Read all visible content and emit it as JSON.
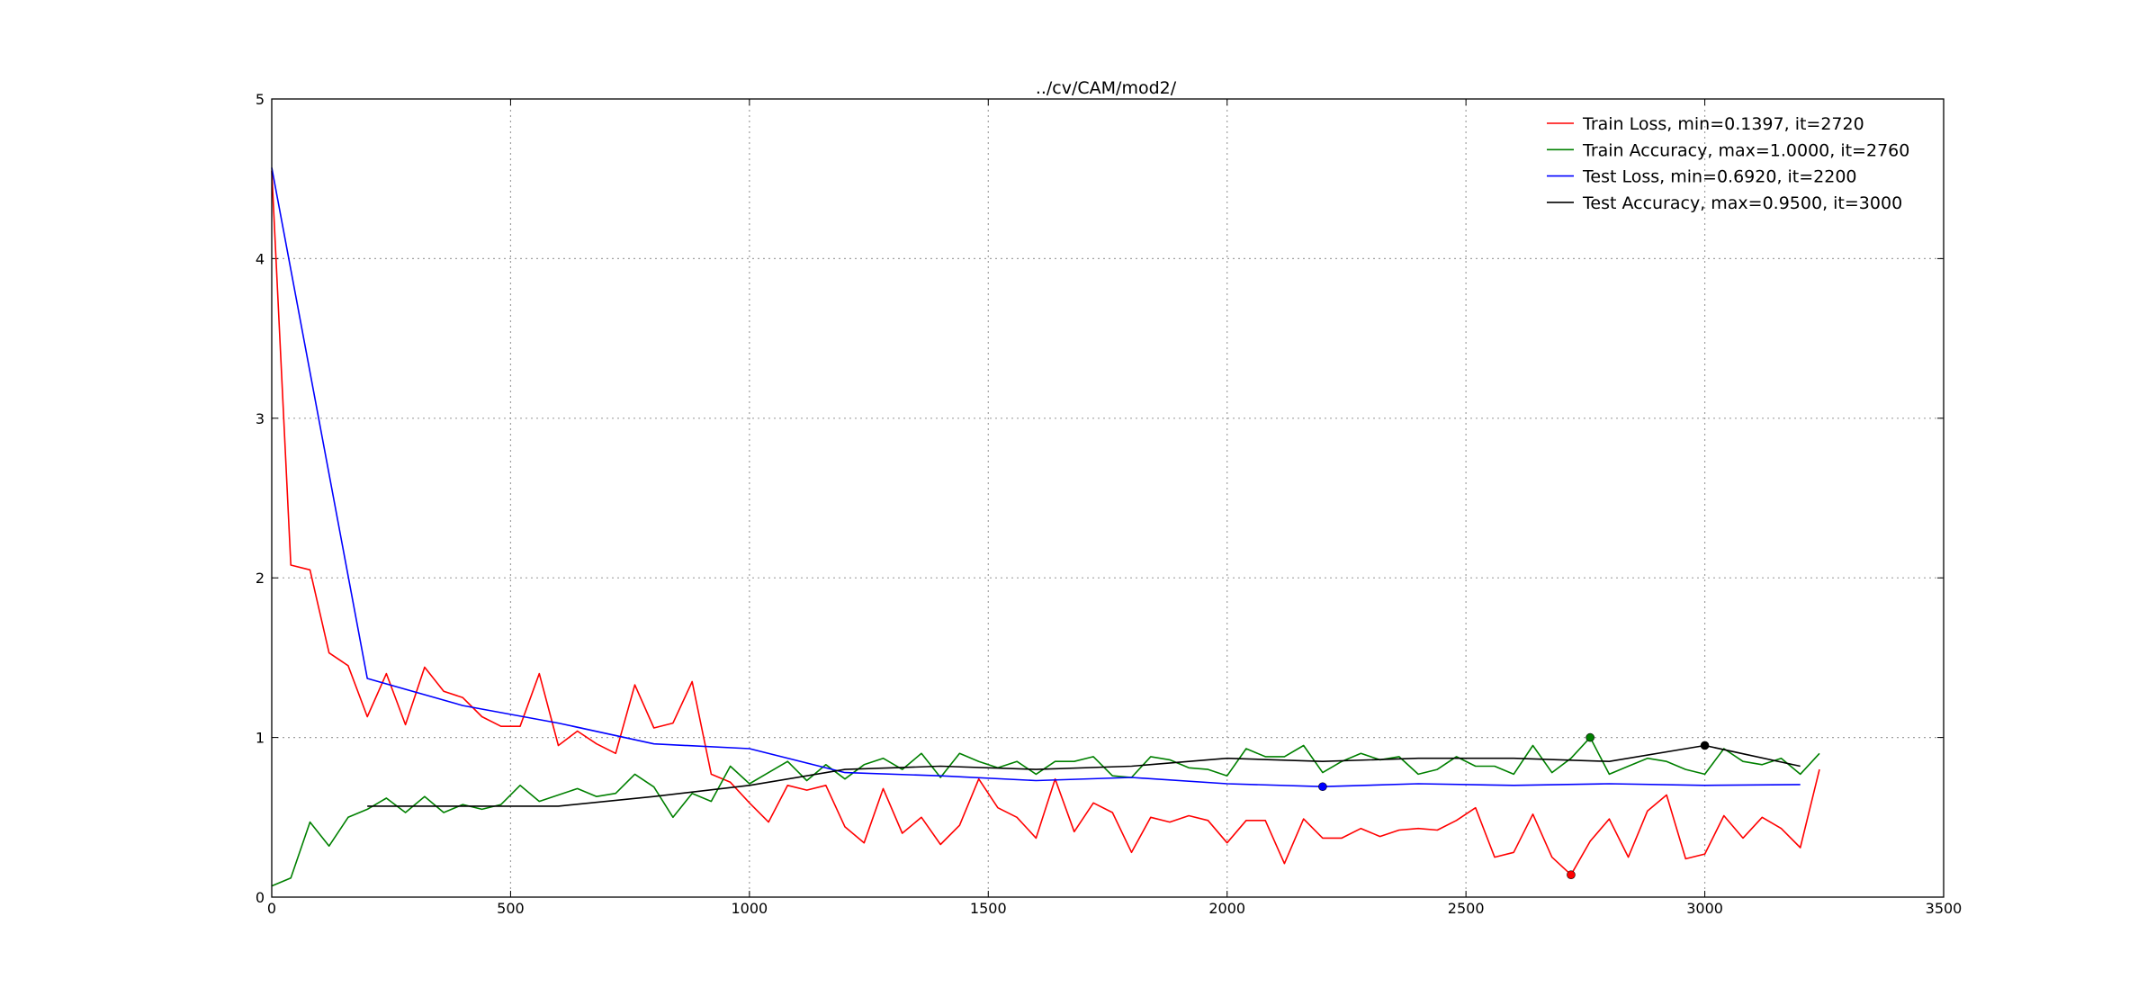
{
  "chart_data": {
    "type": "line",
    "title": "../cv/CAM/mod2/",
    "xlabel": "",
    "ylabel": "",
    "xlim": [
      0,
      3500
    ],
    "ylim": [
      0,
      5
    ],
    "x_ticks": [
      "0",
      "500",
      "1000",
      "1500",
      "2000",
      "2500",
      "3000",
      "3500"
    ],
    "y_ticks": [
      "0",
      "1",
      "2",
      "3",
      "4",
      "5"
    ],
    "grid": true,
    "legend_position": "top-right",
    "series": [
      {
        "name": "Train Loss, min=0.1397, it=2720",
        "color": "#ff0000",
        "x": [
          0,
          40,
          80,
          120,
          160,
          200,
          240,
          280,
          320,
          360,
          400,
          440,
          480,
          520,
          560,
          600,
          640,
          680,
          720,
          760,
          800,
          840,
          880,
          920,
          960,
          1000,
          1040,
          1080,
          1120,
          1160,
          1200,
          1240,
          1280,
          1320,
          1360,
          1400,
          1440,
          1480,
          1520,
          1560,
          1600,
          1640,
          1680,
          1720,
          1760,
          1800,
          1840,
          1880,
          1920,
          1960,
          2000,
          2040,
          2080,
          2120,
          2160,
          2200,
          2240,
          2280,
          2320,
          2360,
          2400,
          2440,
          2480,
          2520,
          2560,
          2600,
          2640,
          2680,
          2720,
          2760,
          2800,
          2840,
          2880,
          2920,
          2960,
          3000,
          3040,
          3080,
          3120,
          3160,
          3200,
          3240
        ],
        "y": [
          4.55,
          2.08,
          2.05,
          1.53,
          1.45,
          1.13,
          1.4,
          1.08,
          1.44,
          1.29,
          1.25,
          1.13,
          1.07,
          1.07,
          1.4,
          0.95,
          1.04,
          0.96,
          0.9,
          1.33,
          1.06,
          1.09,
          1.35,
          0.77,
          0.72,
          0.59,
          0.47,
          0.7,
          0.67,
          0.7,
          0.44,
          0.34,
          0.68,
          0.4,
          0.5,
          0.33,
          0.45,
          0.74,
          0.56,
          0.5,
          0.37,
          0.74,
          0.41,
          0.59,
          0.53,
          0.28,
          0.5,
          0.47,
          0.51,
          0.48,
          0.34,
          0.48,
          0.48,
          0.21,
          0.49,
          0.37,
          0.37,
          0.43,
          0.38,
          0.42,
          0.43,
          0.42,
          0.48,
          0.56,
          0.25,
          0.28,
          0.52,
          0.25,
          0.14,
          0.35,
          0.49,
          0.25,
          0.54,
          0.64,
          0.24,
          0.27,
          0.51,
          0.37,
          0.5,
          0.43,
          0.31,
          0.8
        ]
      },
      {
        "name": "Train Accuracy, max=1.0000, it=2760",
        "color": "#008000",
        "x": [
          0,
          40,
          80,
          120,
          160,
          200,
          240,
          280,
          320,
          360,
          400,
          440,
          480,
          520,
          560,
          600,
          640,
          680,
          720,
          760,
          800,
          840,
          880,
          920,
          960,
          1000,
          1040,
          1080,
          1120,
          1160,
          1200,
          1240,
          1280,
          1320,
          1360,
          1400,
          1440,
          1480,
          1520,
          1560,
          1600,
          1640,
          1680,
          1720,
          1760,
          1800,
          1840,
          1880,
          1920,
          1960,
          2000,
          2040,
          2080,
          2120,
          2160,
          2200,
          2240,
          2280,
          2320,
          2360,
          2400,
          2440,
          2480,
          2520,
          2560,
          2600,
          2640,
          2680,
          2720,
          2760,
          2800,
          2840,
          2880,
          2920,
          2960,
          3000,
          3040,
          3080,
          3120,
          3160,
          3200,
          3240
        ],
        "y": [
          0.07,
          0.12,
          0.47,
          0.32,
          0.5,
          0.55,
          0.62,
          0.53,
          0.63,
          0.53,
          0.58,
          0.55,
          0.58,
          0.7,
          0.6,
          0.64,
          0.68,
          0.63,
          0.65,
          0.77,
          0.69,
          0.5,
          0.65,
          0.6,
          0.82,
          0.71,
          0.78,
          0.85,
          0.73,
          0.83,
          0.74,
          0.83,
          0.87,
          0.8,
          0.9,
          0.75,
          0.9,
          0.85,
          0.81,
          0.85,
          0.77,
          0.85,
          0.85,
          0.88,
          0.76,
          0.75,
          0.88,
          0.86,
          0.81,
          0.8,
          0.76,
          0.93,
          0.88,
          0.88,
          0.95,
          0.78,
          0.85,
          0.9,
          0.86,
          0.88,
          0.77,
          0.8,
          0.88,
          0.82,
          0.82,
          0.77,
          0.95,
          0.78,
          0.87,
          1.0,
          0.77,
          0.82,
          0.87,
          0.85,
          0.8,
          0.77,
          0.93,
          0.85,
          0.83,
          0.87,
          0.77,
          0.9
        ]
      },
      {
        "name": "Test Loss, min=0.6920, it=2200",
        "color": "#0000ff",
        "x": [
          0,
          200,
          400,
          600,
          800,
          1000,
          1200,
          1400,
          1600,
          1800,
          2000,
          2200,
          2400,
          2600,
          2800,
          3000,
          3200
        ],
        "y": [
          4.57,
          1.37,
          1.2,
          1.09,
          0.96,
          0.93,
          0.78,
          0.76,
          0.73,
          0.75,
          0.71,
          0.692,
          0.71,
          0.7,
          0.71,
          0.7,
          0.705
        ]
      },
      {
        "name": "Test Accuracy, max=0.9500, it=3000",
        "color": "#000000",
        "x": [
          200,
          400,
          600,
          800,
          1000,
          1200,
          1400,
          1600,
          1800,
          2000,
          2200,
          2400,
          2600,
          2800,
          3000,
          3200
        ],
        "y": [
          0.57,
          0.57,
          0.57,
          0.63,
          0.7,
          0.8,
          0.82,
          0.8,
          0.82,
          0.87,
          0.85,
          0.87,
          0.87,
          0.85,
          0.95,
          0.82
        ]
      }
    ],
    "markers": [
      {
        "x": 2720,
        "y": 0.1397,
        "color": "#ff0000"
      },
      {
        "x": 2760,
        "y": 1.0,
        "color": "#008000"
      },
      {
        "x": 2200,
        "y": 0.692,
        "color": "#0000ff"
      },
      {
        "x": 3000,
        "y": 0.95,
        "color": "#000000"
      }
    ]
  }
}
